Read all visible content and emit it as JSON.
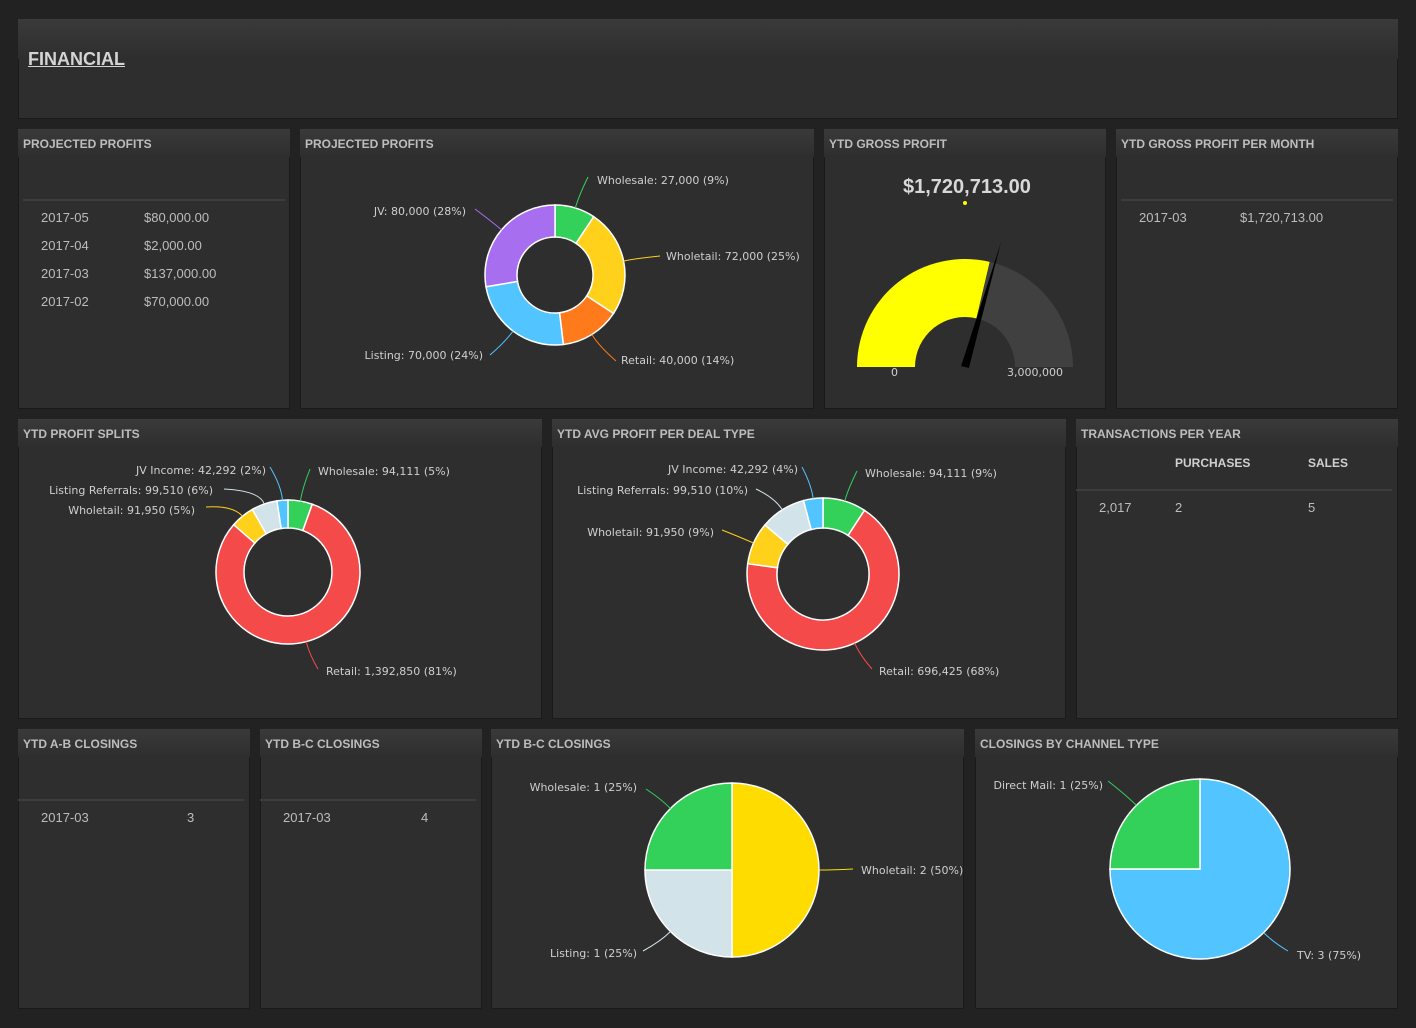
{
  "header": {
    "title": "FINANCIAL"
  },
  "projected_profits_table": {
    "title": "PROJECTED PROFITS",
    "rows": [
      {
        "month": "2017-05",
        "amount": "$80,000.00"
      },
      {
        "month": "2017-04",
        "amount": "$2,000.00"
      },
      {
        "month": "2017-03",
        "amount": "$137,000.00"
      },
      {
        "month": "2017-02",
        "amount": "$70,000.00"
      }
    ]
  },
  "projected_profits_chart": {
    "title": "PROJECTED PROFITS"
  },
  "ytd_gross_profit": {
    "title": "YTD GROSS PROFIT",
    "value_text": "$1,720,713.00",
    "min_label": "0",
    "max_label": "3,000,000"
  },
  "ytd_gross_profit_month": {
    "title": "YTD GROSS PROFIT PER MONTH",
    "rows": [
      {
        "month": "2017-03",
        "amount": "$1,720,713.00"
      }
    ]
  },
  "ytd_profit_splits": {
    "title": "YTD PROFIT SPLITS"
  },
  "ytd_avg_profit": {
    "title": "YTD AVG PROFIT PER DEAL TYPE"
  },
  "transactions": {
    "title": "TRANSACTIONS PER YEAR",
    "headers": [
      "PURCHASES",
      "SALES"
    ],
    "rows": [
      {
        "year": "2,017",
        "purchases": "2",
        "sales": "5"
      }
    ]
  },
  "ab_closings": {
    "title": "YTD A-B CLOSINGS",
    "rows": [
      {
        "month": "2017-03",
        "count": "3"
      }
    ]
  },
  "bc_closings": {
    "title": "YTD B-C CLOSINGS",
    "rows": [
      {
        "month": "2017-03",
        "count": "4"
      }
    ]
  },
  "bc_closings_chart": {
    "title": "YTD B-C CLOSINGS"
  },
  "channel_closings": {
    "title": "CLOSINGS BY CHANNEL TYPE"
  },
  "chart_data": [
    {
      "type": "pie",
      "id": "projected-profits",
      "donut": true,
      "series": [
        {
          "values": [
            27000,
            72000,
            40000,
            70000,
            80000
          ]
        }
      ],
      "categories": [
        "Wholesale",
        "Wholetail",
        "Retail",
        "Listing",
        "JV"
      ],
      "labels": [
        "Wholesale: 27,000 (9%)",
        "Wholetail: 72,000 (25%)",
        "Retail: 40,000 (14%)",
        "Listing: 70,000 (24%)",
        "JV: 80,000 (28%)"
      ],
      "colors": [
        "#33d15a",
        "#ffd11a",
        "#ff7a1a",
        "#52c4ff",
        "#a86ef0"
      ]
    },
    {
      "type": "gauge",
      "id": "ytd-gross-profit",
      "value": 1720713,
      "min": 0,
      "max": 3000000,
      "colors": [
        "#ffff00",
        "#404040"
      ]
    },
    {
      "type": "pie",
      "id": "ytd-profit-splits",
      "donut": true,
      "series": [
        {
          "values": [
            94111,
            1392850,
            91950,
            99510,
            42292
          ]
        }
      ],
      "categories": [
        "Wholesale",
        "Retail",
        "Wholetail",
        "Listing Referrals",
        "JV Income"
      ],
      "labels": [
        "Wholesale: 94,111 (5%)",
        "Retail: 1,392,850 (81%)",
        "Wholetail: 91,950 (5%)",
        "Listing Referrals: 99,510 (6%)",
        "JV Income: 42,292 (2%)"
      ],
      "colors": [
        "#33d15a",
        "#f44a4a",
        "#ffd11a",
        "#d3e3ea",
        "#52c4ff"
      ]
    },
    {
      "type": "pie",
      "id": "ytd-avg-profit",
      "donut": true,
      "series": [
        {
          "values": [
            94111,
            696425,
            91950,
            99510,
            42292
          ]
        }
      ],
      "categories": [
        "Wholesale",
        "Retail",
        "Wholetail",
        "Listing Referrals",
        "JV Income"
      ],
      "labels": [
        "Wholesale: 94,111 (9%)",
        "Retail: 696,425 (68%)",
        "Wholetail: 91,950 (9%)",
        "Listing Referrals: 99,510 (10%)",
        "JV Income: 42,292 (4%)"
      ],
      "colors": [
        "#33d15a",
        "#f44a4a",
        "#ffd11a",
        "#d3e3ea",
        "#52c4ff"
      ]
    },
    {
      "type": "pie",
      "id": "bc-closings",
      "donut": false,
      "series": [
        {
          "values": [
            2,
            1,
            1
          ]
        }
      ],
      "categories": [
        "Wholetail",
        "Listing",
        "Wholesale"
      ],
      "labels": [
        "Wholetail: 2 (50%)",
        "Listing: 1 (25%)",
        "Wholesale: 1 (25%)"
      ],
      "colors": [
        "#ffdc00",
        "#d3e3ea",
        "#33d15a"
      ]
    },
    {
      "type": "pie",
      "id": "channel-closings",
      "donut": false,
      "series": [
        {
          "values": [
            3,
            1
          ]
        }
      ],
      "categories": [
        "TV",
        "Direct Mail"
      ],
      "labels": [
        "TV: 3 (75%)",
        "Direct Mail: 1 (25%)"
      ],
      "colors": [
        "#52c4ff",
        "#33d15a"
      ]
    }
  ]
}
